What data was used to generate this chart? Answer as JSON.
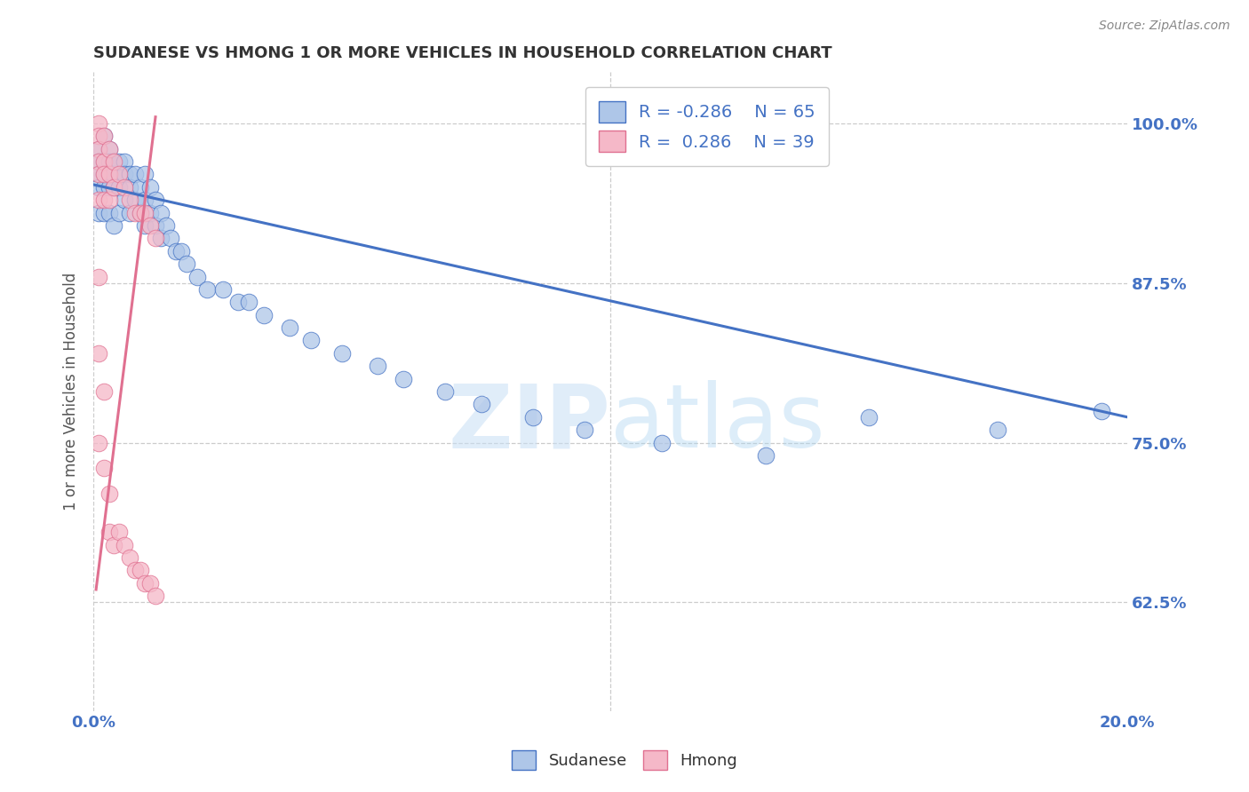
{
  "title": "SUDANESE VS HMONG 1 OR MORE VEHICLES IN HOUSEHOLD CORRELATION CHART",
  "source": "Source: ZipAtlas.com",
  "ylabel": "1 or more Vehicles in Household",
  "ytick_labels": [
    "100.0%",
    "87.5%",
    "75.0%",
    "62.5%"
  ],
  "ytick_values": [
    1.0,
    0.875,
    0.75,
    0.625
  ],
  "xlim": [
    0.0,
    0.2
  ],
  "ylim": [
    0.54,
    1.04
  ],
  "blue_color": "#aec6e8",
  "pink_color": "#f5b8c8",
  "blue_line_color": "#4472c4",
  "pink_line_color": "#e07090",
  "watermark_zip": "ZIP",
  "watermark_atlas": "atlas",
  "sudanese_x": [
    0.001,
    0.001,
    0.001,
    0.001,
    0.001,
    0.002,
    0.002,
    0.002,
    0.002,
    0.002,
    0.003,
    0.003,
    0.003,
    0.003,
    0.004,
    0.004,
    0.004,
    0.004,
    0.005,
    0.005,
    0.005,
    0.006,
    0.006,
    0.006,
    0.007,
    0.007,
    0.007,
    0.008,
    0.008,
    0.009,
    0.009,
    0.01,
    0.01,
    0.01,
    0.011,
    0.011,
    0.012,
    0.012,
    0.013,
    0.013,
    0.014,
    0.015,
    0.016,
    0.017,
    0.018,
    0.02,
    0.022,
    0.025,
    0.028,
    0.03,
    0.033,
    0.038,
    0.042,
    0.048,
    0.055,
    0.06,
    0.068,
    0.075,
    0.085,
    0.095,
    0.11,
    0.13,
    0.15,
    0.175,
    0.195
  ],
  "sudanese_y": [
    0.98,
    0.97,
    0.96,
    0.95,
    0.93,
    0.99,
    0.97,
    0.96,
    0.95,
    0.93,
    0.98,
    0.97,
    0.95,
    0.93,
    0.97,
    0.96,
    0.95,
    0.92,
    0.97,
    0.95,
    0.93,
    0.97,
    0.96,
    0.94,
    0.96,
    0.95,
    0.93,
    0.96,
    0.94,
    0.95,
    0.93,
    0.96,
    0.94,
    0.92,
    0.95,
    0.93,
    0.94,
    0.92,
    0.93,
    0.91,
    0.92,
    0.91,
    0.9,
    0.9,
    0.89,
    0.88,
    0.87,
    0.87,
    0.86,
    0.86,
    0.85,
    0.84,
    0.83,
    0.82,
    0.81,
    0.8,
    0.79,
    0.78,
    0.77,
    0.76,
    0.75,
    0.74,
    0.77,
    0.76,
    0.775
  ],
  "hmong_x": [
    0.001,
    0.001,
    0.001,
    0.001,
    0.001,
    0.001,
    0.002,
    0.002,
    0.002,
    0.002,
    0.003,
    0.003,
    0.003,
    0.004,
    0.004,
    0.005,
    0.006,
    0.007,
    0.008,
    0.009,
    0.01,
    0.011,
    0.012,
    0.001,
    0.001,
    0.001,
    0.002,
    0.002,
    0.003,
    0.003,
    0.004,
    0.005,
    0.006,
    0.007,
    0.008,
    0.009,
    0.01,
    0.011,
    0.012
  ],
  "hmong_y": [
    1.0,
    0.99,
    0.98,
    0.97,
    0.96,
    0.94,
    0.99,
    0.97,
    0.96,
    0.94,
    0.98,
    0.96,
    0.94,
    0.97,
    0.95,
    0.96,
    0.95,
    0.94,
    0.93,
    0.93,
    0.93,
    0.92,
    0.91,
    0.88,
    0.82,
    0.75,
    0.79,
    0.73,
    0.71,
    0.68,
    0.67,
    0.68,
    0.67,
    0.66,
    0.65,
    0.65,
    0.64,
    0.64,
    0.63
  ]
}
